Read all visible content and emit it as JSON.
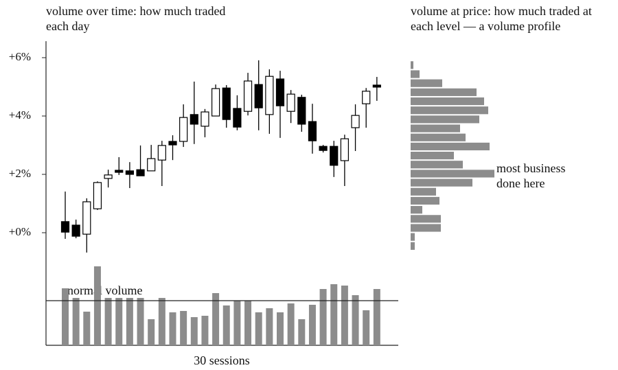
{
  "chart_data": [
    {
      "type": "candlestick",
      "title": "volume over time: how much traded each day",
      "open": [
        0.38,
        0.26,
        -0.05,
        0.82,
        1.86,
        2.14,
        2.12,
        2.16,
        2.12,
        2.49,
        3.13,
        3.13,
        4.05,
        3.65,
        4.0,
        4.96,
        4.26,
        4.16,
        5.08,
        4.05,
        5.27,
        4.16,
        4.64,
        3.81,
        2.96,
        2.96,
        2.47,
        3.6,
        4.42,
        5.06
      ],
      "high": [
        1.41,
        0.45,
        1.18,
        1.76,
        2.16,
        2.59,
        2.42,
        2.99,
        3.01,
        3.15,
        3.34,
        4.4,
        5.18,
        4.24,
        5.08,
        5.06,
        4.71,
        5.48,
        5.91,
        5.6,
        5.55,
        4.89,
        4.73,
        4.42,
        3.01,
        3.15,
        3.36,
        4.4,
        4.96,
        5.34
      ],
      "low": [
        -0.21,
        -0.19,
        -0.68,
        0.78,
        1.55,
        1.98,
        1.53,
        1.95,
        2.12,
        1.6,
        2.49,
        2.94,
        3.04,
        3.27,
        4.0,
        3.6,
        3.51,
        4.02,
        3.51,
        3.39,
        3.25,
        3.76,
        3.46,
        2.71,
        2.75,
        1.91,
        1.6,
        2.8,
        3.6,
        4.52
      ],
      "close": [
        0.02,
        -0.12,
        1.06,
        1.72,
        1.98,
        2.07,
        2.0,
        1.95,
        2.54,
        2.99,
        3.01,
        3.95,
        3.72,
        4.14,
        4.94,
        3.88,
        3.62,
        5.2,
        4.28,
        5.36,
        4.35,
        4.75,
        3.72,
        3.15,
        2.82,
        2.31,
        3.22,
        4.02,
        4.85,
        4.99
      ],
      "up_color": "#ffffff",
      "down_color": "#000000",
      "ylim": [
        -1.0,
        6.5
      ],
      "yticks": [
        {
          "value": 0,
          "label": "+0%"
        },
        {
          "value": 2,
          "label": "+2%"
        },
        {
          "value": 4,
          "label": "+4%"
        },
        {
          "value": 6,
          "label": "+6%"
        }
      ]
    },
    {
      "type": "bar",
      "x_label": "30 sessions",
      "values": [
        83,
        69,
        49,
        115,
        69,
        69,
        69,
        69,
        38,
        69,
        48,
        50,
        41,
        43,
        76,
        58,
        65,
        65,
        48,
        54,
        48,
        61,
        38,
        59,
        82,
        89,
        87,
        73,
        51,
        82
      ],
      "color": "#8c8c8c",
      "ylim": [
        0,
        120
      ],
      "reference": {
        "label": "normal volume",
        "value": 65
      }
    },
    {
      "type": "histogram",
      "title": "volume at price: how much traded at each level — a volume profile",
      "annotation": "most business done here",
      "bins": [
        -0.61,
        -0.3,
        0.01,
        0.32,
        0.63,
        0.94,
        1.25,
        1.56,
        1.87,
        2.18,
        2.49,
        2.8,
        3.11,
        3.42,
        3.73,
        4.04,
        4.35,
        4.66,
        4.97,
        5.28,
        5.59,
        5.9
      ],
      "values": [
        6,
        6,
        44,
        44,
        17,
        42,
        37,
        90,
        122,
        76,
        63,
        115,
        80,
        72,
        100,
        113,
        107,
        96,
        46,
        13,
        4
      ],
      "color": "#8c8c8c",
      "xlim": [
        0,
        130
      ]
    }
  ]
}
